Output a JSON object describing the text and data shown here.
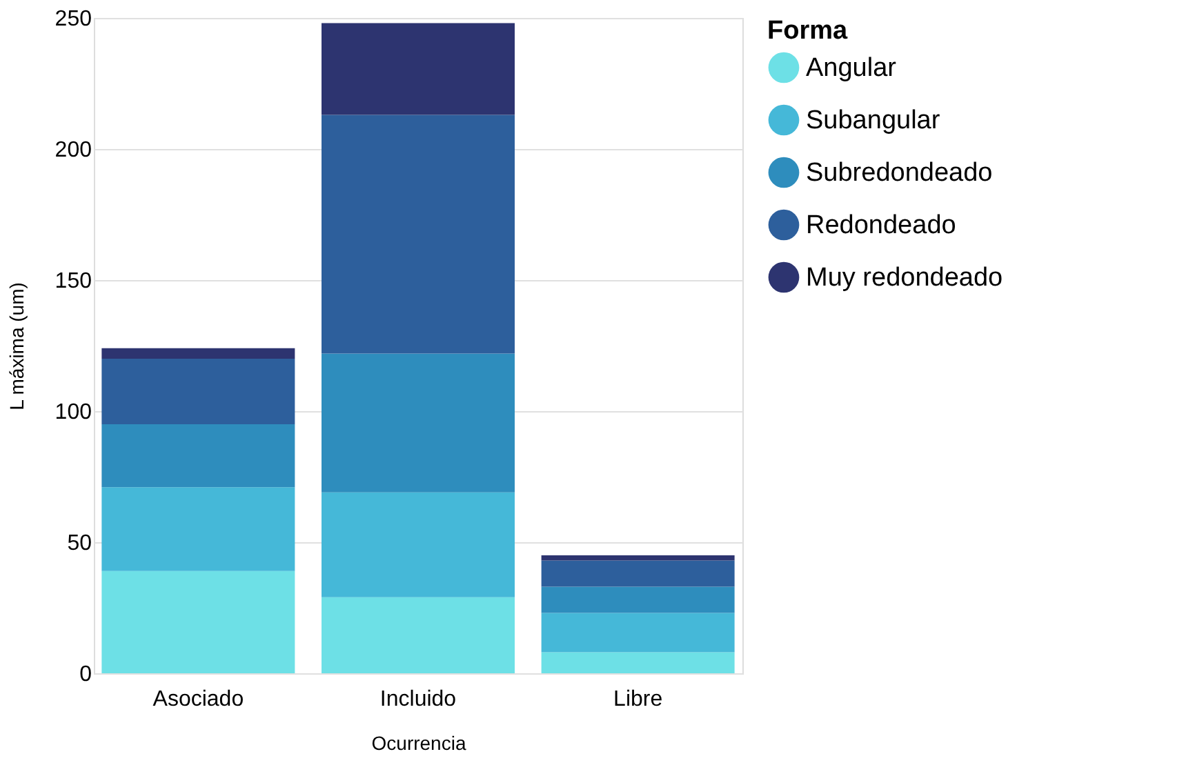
{
  "chart_data": {
    "type": "bar",
    "stacked": true,
    "xlabel": "Ocurrencia",
    "ylabel": "L máxima (um)",
    "legend_title": "Forma",
    "legend": "right",
    "grid": "y",
    "categories": [
      "Asociado",
      "Incluido",
      "Libre"
    ],
    "ylim": [
      0,
      250
    ],
    "yticks": [
      0,
      50,
      100,
      150,
      200,
      250
    ],
    "series": [
      {
        "name": "Angular",
        "color": "#6de0e6",
        "values": [
          39,
          29,
          8
        ]
      },
      {
        "name": "Subangular",
        "color": "#45b8d8",
        "values": [
          32,
          40,
          15
        ]
      },
      {
        "name": "Subredondeado",
        "color": "#2e8dbd",
        "values": [
          24,
          53,
          10
        ]
      },
      {
        "name": "Redondeado",
        "color": "#2d5f9c",
        "values": [
          25,
          91,
          10
        ]
      },
      {
        "name": "Muy redondeado",
        "color": "#2d3470",
        "values": [
          4,
          35,
          2
        ]
      }
    ]
  }
}
